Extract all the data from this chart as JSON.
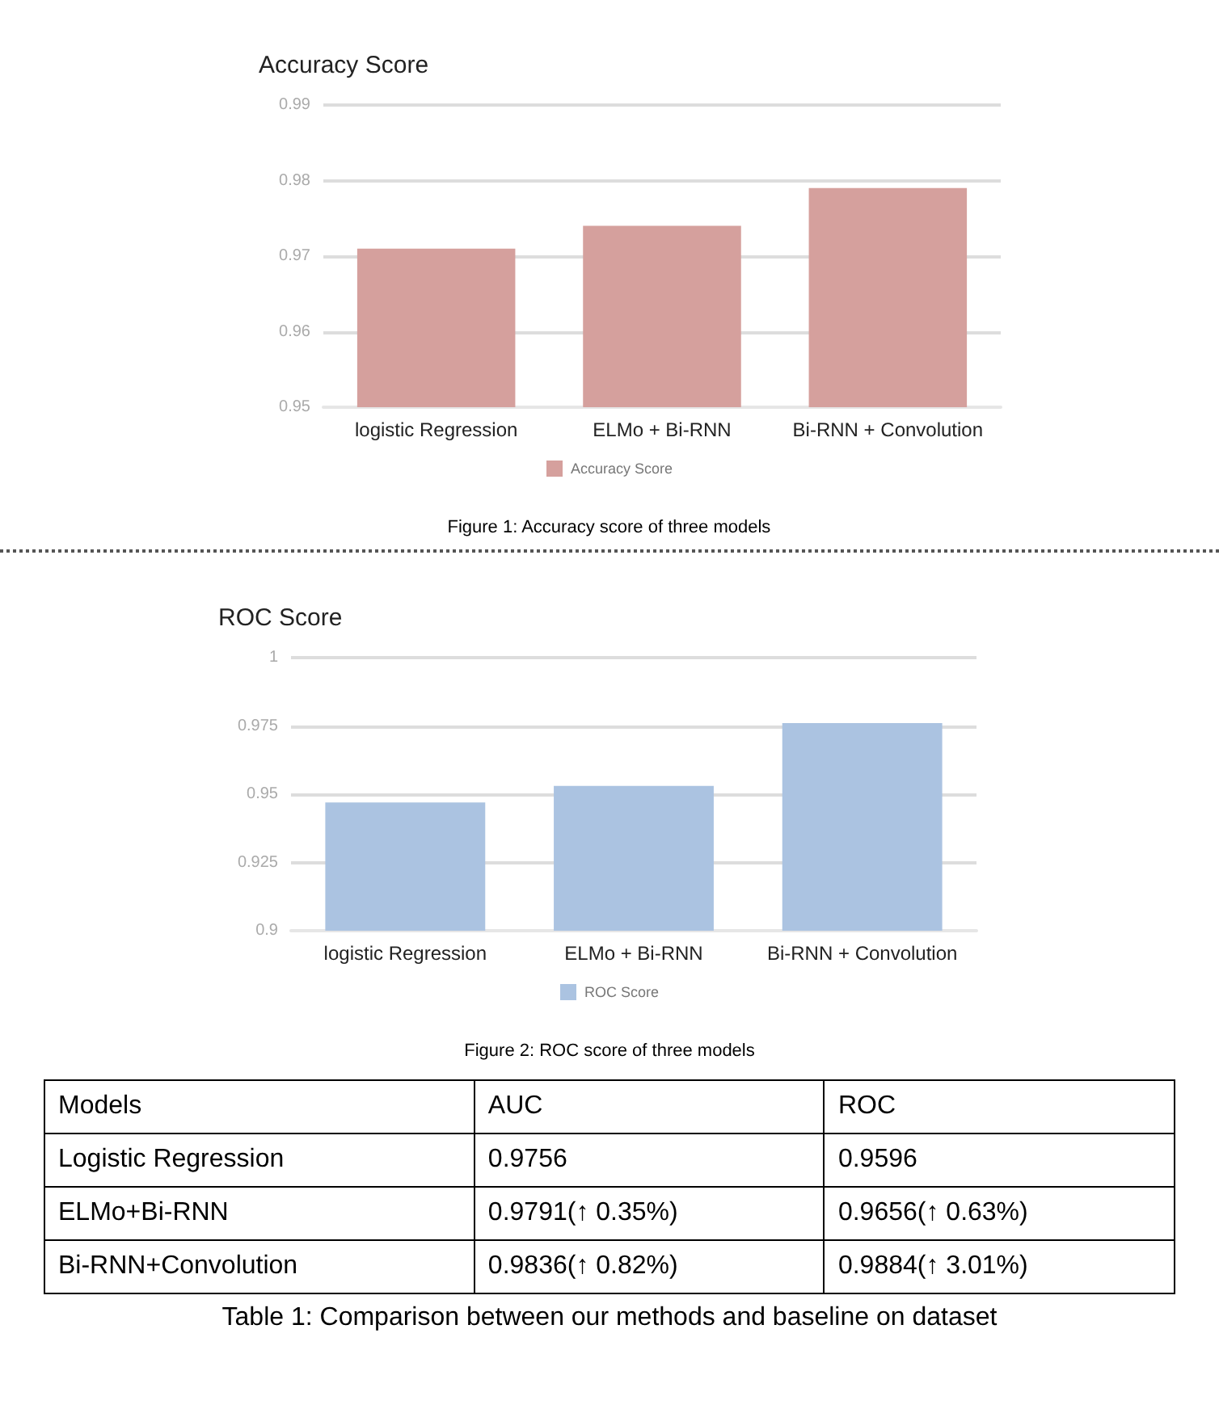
{
  "chart_data": [
    {
      "type": "bar",
      "title": "Accuracy Score",
      "categories": [
        "logistic Regression",
        "ELMo + Bi-RNN",
        "Bi-RNN + Convolution"
      ],
      "series": [
        {
          "name": "Accuracy Score",
          "color": "#d5a09d",
          "values": [
            0.971,
            0.974,
            0.979
          ]
        }
      ],
      "ylim": [
        0.95,
        0.99
      ],
      "yticks": [
        0.95,
        0.96,
        0.97,
        0.98,
        0.99
      ],
      "grid": "y",
      "legend": "bottom",
      "annotations": [
        "Figure 1: Accuracy score of three models"
      ]
    },
    {
      "type": "bar",
      "title": "ROC Score",
      "categories": [
        "logistic Regression",
        "ELMo + Bi-RNN",
        "Bi-RNN + Convolution"
      ],
      "series": [
        {
          "name": "ROC Score",
          "color": "#abc3e1",
          "values": [
            0.947,
            0.953,
            0.976
          ]
        }
      ],
      "ylim": [
        0.9,
        1
      ],
      "yticks": [
        0.9,
        0.925,
        0.95,
        0.975,
        1
      ],
      "grid": "y",
      "legend": "bottom",
      "annotations": [
        "Figure 2: ROC score of three models"
      ]
    },
    {
      "type": "other",
      "annotations": [
        "Models",
        "AUC",
        "ROC",
        "Logistic Regression",
        "0.9756",
        "0.9596",
        "ELMo+Bi-RNN",
        "0.9791(↑ 0.35%)",
        "0.9656(↑ 0.63%)",
        "Bi-RNN+Convolution",
        "0.9836(↑ 0.82%)",
        "0.9884(↑ 3.01%)",
        "Table 1: Comparison between our methods and baseline on dataset"
      ]
    }
  ]
}
